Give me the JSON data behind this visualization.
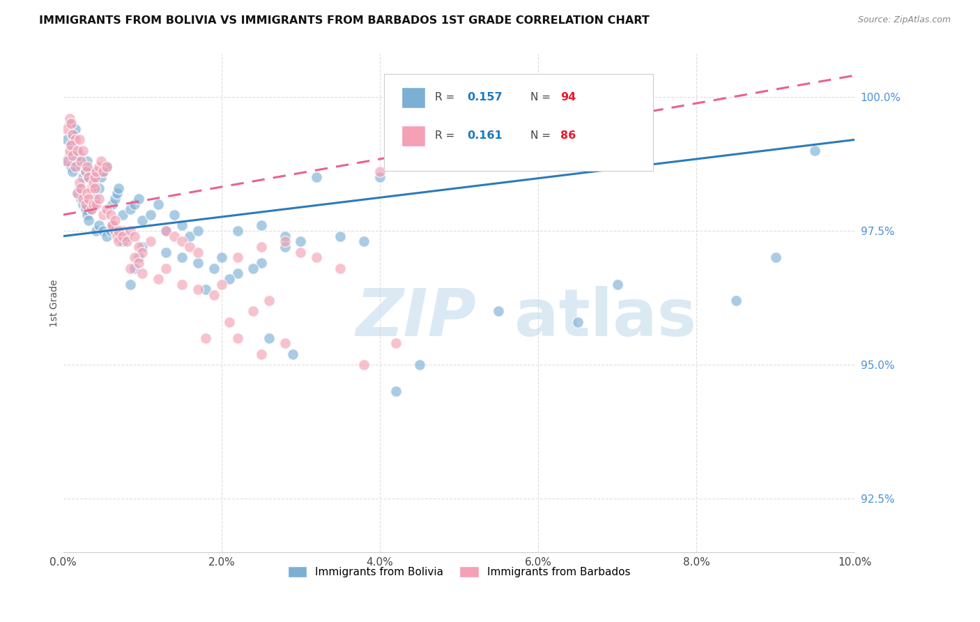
{
  "title": "IMMIGRANTS FROM BOLIVIA VS IMMIGRANTS FROM BARBADOS 1ST GRADE CORRELATION CHART",
  "source": "Source: ZipAtlas.com",
  "ylabel": "1st Grade",
  "xmin": 0.0,
  "xmax": 10.0,
  "ymin": 91.5,
  "ymax": 100.8,
  "yticks": [
    92.5,
    95.0,
    97.5,
    100.0
  ],
  "xticks": [
    0.0,
    2.0,
    4.0,
    6.0,
    8.0,
    10.0
  ],
  "xtick_labels": [
    "0.0%",
    "2.0%",
    "4.0%",
    "6.0%",
    "8.0%",
    "10.0%"
  ],
  "ytick_labels": [
    "92.5%",
    "95.0%",
    "97.5%",
    "100.0%"
  ],
  "bolivia_color": "#7bafd4",
  "barbados_color": "#f4a0b5",
  "bolivia_R": 0.157,
  "bolivia_N": 94,
  "barbados_R": 0.161,
  "barbados_N": 86,
  "legend_R_color": "#1a7abf",
  "legend_N_color": "#e8192c",
  "bolivia_label": "Immigrants from Bolivia",
  "barbados_label": "Immigrants from Barbados",
  "bolivia_x": [
    0.05,
    0.08,
    0.1,
    0.12,
    0.15,
    0.05,
    0.08,
    0.1,
    0.12,
    0.15,
    0.18,
    0.2,
    0.22,
    0.25,
    0.28,
    0.18,
    0.2,
    0.22,
    0.25,
    0.28,
    0.3,
    0.32,
    0.35,
    0.38,
    0.4,
    0.3,
    0.32,
    0.35,
    0.38,
    0.4,
    0.42,
    0.45,
    0.48,
    0.5,
    0.55,
    0.42,
    0.45,
    0.5,
    0.55,
    0.6,
    0.62,
    0.65,
    0.68,
    0.7,
    0.75,
    0.62,
    0.65,
    0.7,
    0.75,
    0.8,
    0.85,
    0.9,
    0.95,
    1.0,
    1.1,
    0.85,
    0.9,
    0.95,
    1.0,
    1.2,
    1.3,
    1.4,
    1.5,
    1.6,
    1.7,
    1.3,
    1.5,
    1.7,
    1.9,
    2.0,
    2.2,
    2.5,
    2.8,
    3.0,
    3.2,
    2.2,
    2.5,
    2.8,
    3.5,
    3.8,
    4.0,
    5.5,
    6.5,
    7.0,
    8.5,
    9.0,
    9.5,
    1.8,
    2.1,
    2.4,
    2.6,
    2.9,
    4.2,
    4.5
  ],
  "bolivia_y": [
    99.2,
    99.5,
    99.1,
    99.3,
    99.4,
    98.8,
    98.9,
    98.7,
    98.6,
    98.8,
    99.0,
    98.9,
    98.7,
    98.5,
    98.6,
    98.2,
    98.3,
    98.1,
    98.0,
    97.9,
    98.8,
    98.5,
    98.6,
    98.3,
    98.4,
    97.8,
    97.7,
    97.9,
    98.0,
    98.1,
    98.5,
    98.3,
    98.5,
    98.6,
    98.7,
    97.5,
    97.6,
    97.5,
    97.4,
    97.5,
    98.0,
    98.1,
    98.2,
    98.3,
    97.8,
    97.6,
    97.5,
    97.5,
    97.3,
    97.4,
    97.9,
    98.0,
    98.1,
    97.7,
    97.8,
    96.5,
    96.8,
    97.0,
    97.2,
    98.0,
    97.5,
    97.8,
    97.6,
    97.4,
    97.5,
    97.1,
    97.0,
    96.9,
    96.8,
    97.0,
    97.5,
    97.6,
    97.4,
    97.3,
    98.5,
    96.7,
    96.9,
    97.2,
    97.4,
    97.3,
    98.5,
    96.0,
    95.8,
    96.5,
    96.2,
    97.0,
    99.0,
    96.4,
    96.6,
    96.8,
    95.5,
    95.2,
    94.5,
    95.0
  ],
  "barbados_x": [
    0.05,
    0.08,
    0.1,
    0.12,
    0.15,
    0.05,
    0.08,
    0.1,
    0.12,
    0.15,
    0.18,
    0.2,
    0.22,
    0.25,
    0.28,
    0.18,
    0.2,
    0.22,
    0.25,
    0.28,
    0.3,
    0.32,
    0.35,
    0.38,
    0.4,
    0.3,
    0.32,
    0.35,
    0.38,
    0.4,
    0.42,
    0.45,
    0.48,
    0.5,
    0.55,
    0.42,
    0.45,
    0.5,
    0.55,
    0.6,
    0.62,
    0.65,
    0.68,
    0.7,
    0.75,
    0.62,
    0.65,
    0.7,
    0.75,
    0.8,
    0.85,
    0.9,
    0.95,
    1.0,
    1.1,
    0.85,
    0.9,
    0.95,
    1.0,
    1.2,
    1.3,
    1.4,
    1.5,
    1.6,
    1.7,
    1.3,
    1.5,
    1.7,
    1.9,
    2.0,
    2.2,
    2.5,
    2.8,
    3.0,
    3.2,
    2.2,
    2.5,
    2.8,
    3.5,
    3.8,
    4.0,
    4.2,
    1.8,
    2.1,
    2.4,
    2.6
  ],
  "barbados_y": [
    99.4,
    99.6,
    99.5,
    99.3,
    99.2,
    98.8,
    99.0,
    99.1,
    98.9,
    98.7,
    99.0,
    99.2,
    98.8,
    99.0,
    98.6,
    98.2,
    98.4,
    98.3,
    98.1,
    98.0,
    98.7,
    98.5,
    98.3,
    98.4,
    98.5,
    98.2,
    98.1,
    97.9,
    98.0,
    98.3,
    98.6,
    98.7,
    98.8,
    98.6,
    98.7,
    98.0,
    98.1,
    97.8,
    97.9,
    97.8,
    97.6,
    97.5,
    97.4,
    97.3,
    97.5,
    97.6,
    97.7,
    97.5,
    97.4,
    97.3,
    97.5,
    97.4,
    97.2,
    97.1,
    97.3,
    96.8,
    97.0,
    96.9,
    96.7,
    96.6,
    97.5,
    97.4,
    97.3,
    97.2,
    97.1,
    96.8,
    96.5,
    96.4,
    96.3,
    96.5,
    97.0,
    97.2,
    97.3,
    97.1,
    97.0,
    95.5,
    95.2,
    95.4,
    96.8,
    95.0,
    98.6,
    95.4,
    95.5,
    95.8,
    96.0,
    96.2
  ],
  "watermark_zip": "ZIP",
  "watermark_atlas": "atlas",
  "background_color": "#ffffff",
  "grid_color": "#dddddd",
  "tick_color": "#4a90d9"
}
